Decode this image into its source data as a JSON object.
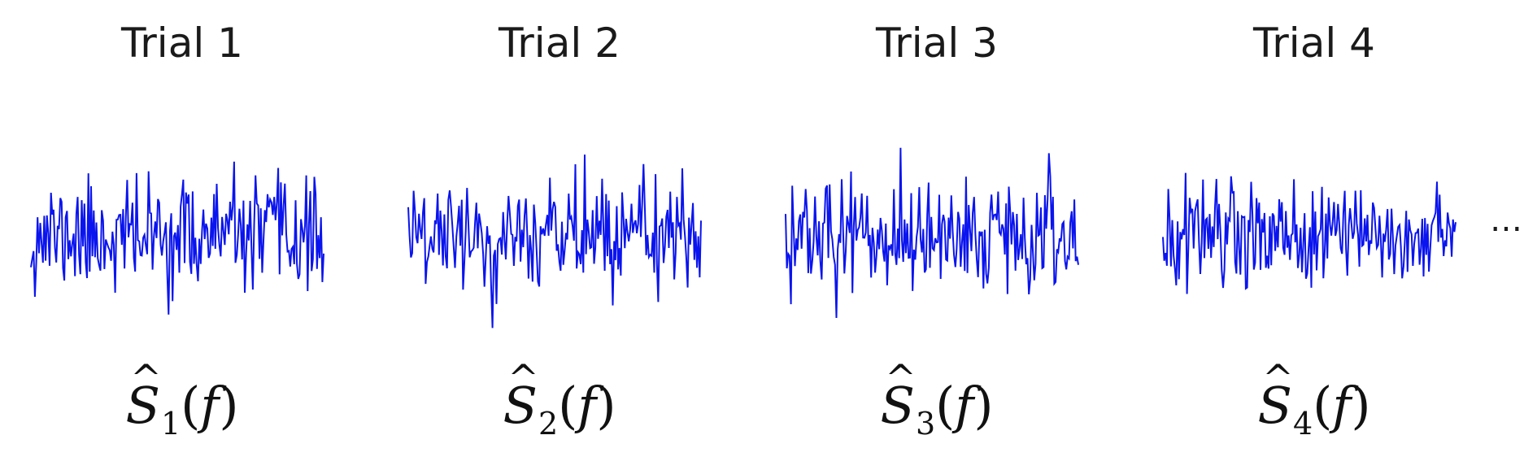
{
  "trials": [
    {
      "title": "Trial 1",
      "subscript": "1",
      "seed": 11
    },
    {
      "title": "Trial 2",
      "subscript": "2",
      "seed": 29
    },
    {
      "title": "Trial 3",
      "subscript": "3",
      "seed": 47
    },
    {
      "title": "Trial 4",
      "subscript": "4",
      "seed": 83
    }
  ],
  "estimator": {
    "symbol": "S",
    "hat": "^",
    "argument": "f"
  },
  "ellipsis": "…",
  "colors": {
    "signal": "#0a14ee",
    "text": "#1a1a1a"
  }
}
